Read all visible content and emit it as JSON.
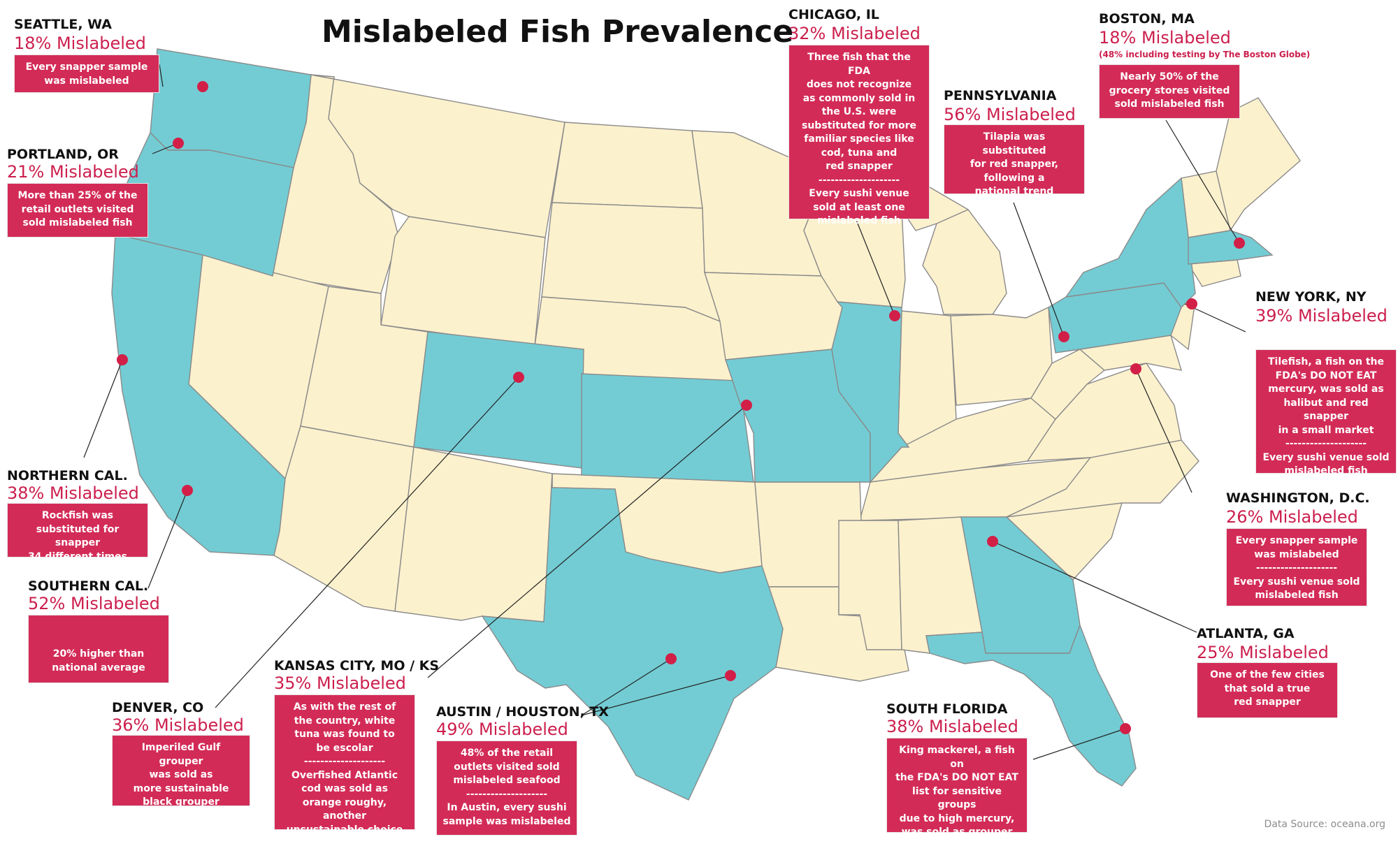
{
  "title": "Mislabeled Fish Prevalence",
  "source": "Data Source: oceana.org",
  "colors": {
    "highlight_state": "#73ccd4",
    "other_state": "#fcf1cd",
    "state_border": "#8a8a8a",
    "marker": "#d21f48",
    "box": "#d32b57",
    "accent_text": "#cc1f4d"
  },
  "cities": [
    {
      "name": "SEATTLE, WA",
      "pct": "18% Mislabeled",
      "text": "Every snapper sample\nwas mislabeled"
    },
    {
      "name": "PORTLAND, OR",
      "pct": "21% Mislabeled",
      "text": "More than 25% of the\nretail outlets visited\nsold mislabeled fish"
    },
    {
      "name": "NORTHERN CAL.",
      "pct": "38% Mislabeled",
      "text": "Rockfish was\nsubstituted for snapper\n34 different times"
    },
    {
      "name": "SOUTHERN CAL.",
      "pct": "52% Mislabeled",
      "text": "20% higher than\nnational average"
    },
    {
      "name": "DENVER, CO",
      "pct": "36% Mislabeled",
      "text": "Imperiled Gulf grouper\nwas sold as\nmore sustainable\nblack grouper"
    },
    {
      "name": "KANSAS CITY, MO / KS",
      "pct": "35% Mislabeled",
      "text": "As with the rest of\nthe country, white\ntuna was found to\nbe escolar\n--------------------\nOverfished Atlantic\ncod was sold as\norange roughy, another\nunsustainable choice"
    },
    {
      "name": "AUSTIN / HOUSTON, TX",
      "pct": "49% Mislabeled",
      "text": "48% of the retail\noutlets visited sold\nmislabeled seafood\n--------------------\nIn Austin, every sushi\nsample was mislabeled"
    },
    {
      "name": "CHICAGO, IL",
      "pct": "32% Mislabeled",
      "text": "Three fish that the FDA\ndoes not recognize\nas commonly sold in\nthe U.S. were\nsubstituted for more\nfamiliar species like\ncod, tuna and\nred snapper\n--------------------\nEvery sushi venue\nsold at least one\nmislabeled fish"
    },
    {
      "name": "PENNSYLVANIA",
      "pct": "56% Mislabeled",
      "text": "Tilapia was substituted\nfor red snapper,\nfollowing a\nnational trend"
    },
    {
      "name": "BOSTON, MA",
      "pct": "18% Mislabeled",
      "note": "(48% including testing by The Boston Globe)",
      "text": "Nearly 50% of the\ngrocery stores visited\nsold mislabeled fish"
    },
    {
      "name": "NEW YORK, NY",
      "pct": "39% Mislabeled",
      "text": "Tilefish, a fish on the\nFDA's DO NOT EAT\nmercury, was sold as\nhalibut and red snapper\nin a small market\n--------------------\nEvery sushi venue sold\nmislabeled fish"
    },
    {
      "name": "WASHINGTON, D.C.",
      "pct": "26% Mislabeled",
      "text": "Every snapper sample\nwas mislabeled\n--------------------\nEvery sushi venue sold\nmislabeled fish"
    },
    {
      "name": "ATLANTA, GA",
      "pct": "25% Mislabeled",
      "text": "One of the few cities\nthat sold a true\nred snapper"
    },
    {
      "name": "SOUTH FLORIDA",
      "pct": "38% Mislabeled",
      "text": "King mackerel, a fish on\nthe FDA's DO NOT EAT\nlist for sensitive groups\ndue to high mercury,\nwas sold as grouper\nin a grocery store"
    }
  ]
}
